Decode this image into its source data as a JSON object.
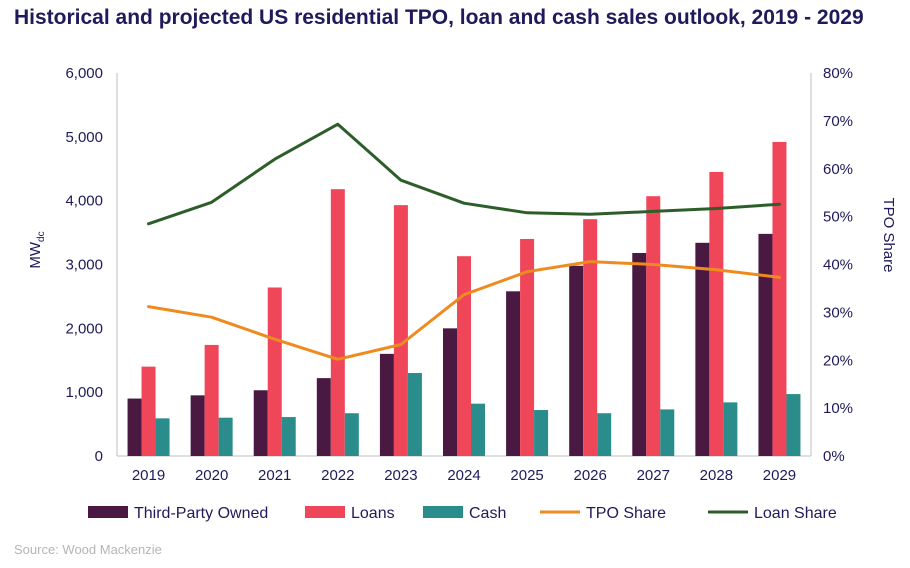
{
  "chart_data": {
    "type": "bar",
    "title": "Historical and projected US residential TPO, loan and cash sales outlook, 2019 - 2029",
    "categories": [
      "2019",
      "2020",
      "2021",
      "2022",
      "2023",
      "2024",
      "2025",
      "2026",
      "2027",
      "2028",
      "2029"
    ],
    "ylabel": "MW",
    "ylabel_sub": "dc",
    "ylabel_right": "TPO Share",
    "ylim": [
      0,
      6000
    ],
    "ylim_right": [
      0,
      80
    ],
    "y_ticks": [
      "0",
      "1,000",
      "2,000",
      "3,000",
      "4,000",
      "5,000",
      "6,000"
    ],
    "y_right_ticks": [
      "0%",
      "10%",
      "20%",
      "30%",
      "40%",
      "50%",
      "60%",
      "70%",
      "80%"
    ],
    "grid": false,
    "legend_position": "bottom",
    "series": [
      {
        "name": "Third-Party Owned",
        "kind": "bar",
        "axis": "left",
        "color": "#4a1942",
        "values": [
          900,
          950,
          1030,
          1220,
          1600,
          2000,
          2580,
          2980,
          3180,
          3340,
          3480
        ]
      },
      {
        "name": "Loans",
        "kind": "bar",
        "axis": "left",
        "color": "#f0465a",
        "values": [
          1400,
          1740,
          2640,
          4180,
          3930,
          3130,
          3400,
          3710,
          4070,
          4450,
          4920
        ]
      },
      {
        "name": "Cash",
        "kind": "bar",
        "axis": "left",
        "color": "#2b8c8c",
        "values": [
          590,
          600,
          610,
          670,
          1300,
          820,
          720,
          670,
          730,
          840,
          970
        ]
      },
      {
        "name": "TPO Share",
        "kind": "line",
        "axis": "right",
        "color": "#ee8b1e",
        "values": [
          31.2,
          29.0,
          24.4,
          20.2,
          23.3,
          33.7,
          38.5,
          40.6,
          40.0,
          38.9,
          37.3
        ]
      },
      {
        "name": "Loan Share",
        "kind": "line",
        "axis": "right",
        "color": "#2d5e2a",
        "values": [
          48.5,
          53.0,
          62.0,
          69.3,
          57.6,
          52.8,
          50.8,
          50.5,
          51.1,
          51.7,
          52.6
        ]
      }
    ]
  },
  "source": "Source: Wood Mackenzie"
}
